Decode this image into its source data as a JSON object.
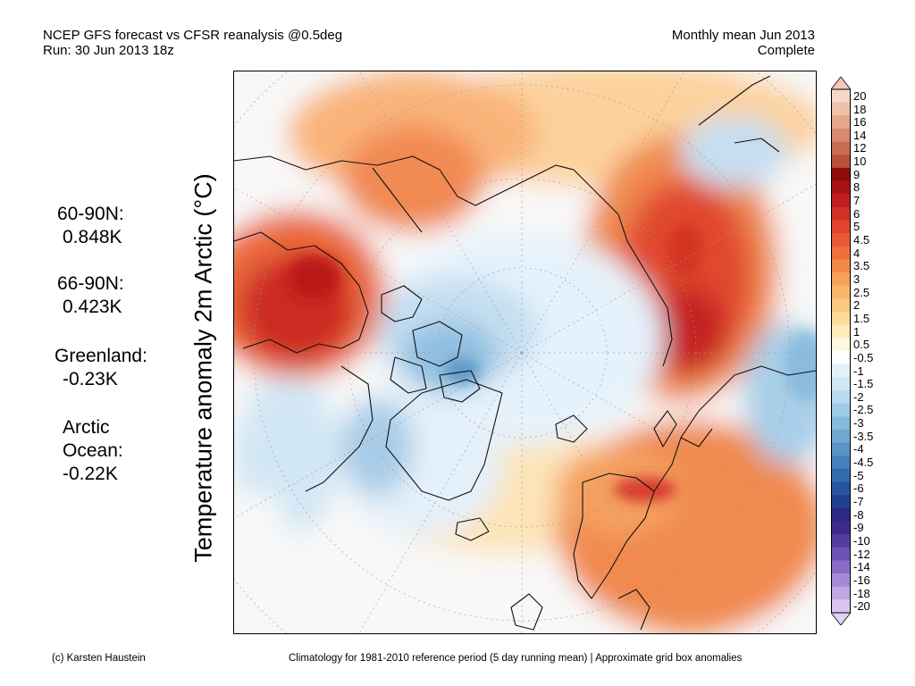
{
  "header": {
    "line1_left": "NCEP GFS forecast vs CFSR reanalysis @0.5deg",
    "line2_left": "Run: 30 Jun 2013 18z",
    "line1_right": "Monthly mean Jun 2013",
    "line2_right": "Complete"
  },
  "axis_label": "Temperature anomaly 2m Arctic (°C)",
  "stats": [
    {
      "label": "60-90N:",
      "value": "0.848K"
    },
    {
      "label": "66-90N:",
      "value": "0.423K"
    },
    {
      "label": "Greenland:",
      "value": "-0.23K"
    },
    {
      "label": "Arctic",
      "label2": "Ocean:",
      "value": "-0.22K"
    }
  ],
  "footer": {
    "credit": "(c) Karsten Haustein",
    "note": "Climatology for 1981-2010 reference period (5 day running mean) | Approximate grid box anomalies"
  },
  "colorbar": {
    "labels": [
      "20",
      "18",
      "16",
      "14",
      "12",
      "10",
      "9",
      "8",
      "7",
      "6",
      "5",
      "4.5",
      "4",
      "3.5",
      "3",
      "2.5",
      "2",
      "1.5",
      "1",
      "0.5",
      "-0.5",
      "-1",
      "-1.5",
      "-2",
      "-2.5",
      "-3",
      "-3.5",
      "-4",
      "-4.5",
      "-5",
      "-6",
      "-7",
      "-8",
      "-9",
      "-10",
      "-12",
      "-14",
      "-16",
      "-18",
      "-20"
    ],
    "colors": [
      "#f6d8c8",
      "#eec1aa",
      "#e3a78c",
      "#d78a6e",
      "#c96c52",
      "#b8503a",
      "#8c0c0c",
      "#a81414",
      "#c01e1e",
      "#d23024",
      "#e0442c",
      "#e85a34",
      "#ee703c",
      "#f2884a",
      "#f6a05a",
      "#f8b66c",
      "#fac880",
      "#fcda9a",
      "#feecba",
      "#fef8e0",
      "#ffffff",
      "#e2f0fa",
      "#cfe6f5",
      "#b8daef",
      "#a0cbe6",
      "#88badd",
      "#70a8d4",
      "#5a94c8",
      "#4680bc",
      "#326aaf",
      "#2656a0",
      "#223f8e",
      "#2a2a80",
      "#3e2a8a",
      "#563c9e",
      "#6e52b2",
      "#8a6cc6",
      "#a688d6",
      "#c0a6e4",
      "#d8c6f0"
    ],
    "colors_end_high": "#f2c8b4",
    "colors_end_low": "#e0d2f6"
  }
}
